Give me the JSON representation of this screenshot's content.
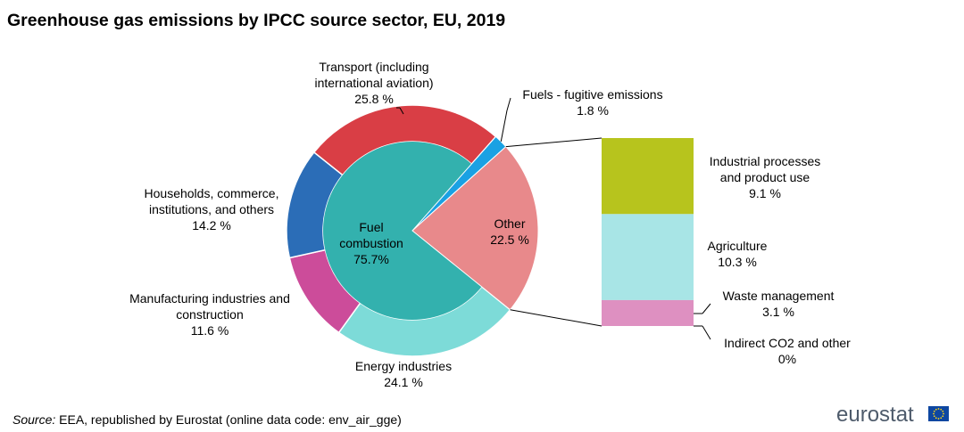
{
  "chart_data": {
    "type": "pie",
    "title": "Greenhouse gas emissions by IPCC source sector, EU, 2019",
    "unit": "%",
    "inner": [
      {
        "name": "Fuel combustion",
        "label_lines": [
          "Fuel",
          "combustion",
          "75.7%"
        ],
        "value": 75.7,
        "color": "#33b1ae"
      },
      {
        "name": "Fuels - fugitive emissions",
        "value": 1.8,
        "color": "#1aa1e3"
      },
      {
        "name": "Other",
        "label_lines": [
          "Other",
          "22.5 %"
        ],
        "value": 22.5,
        "color": "#e8898b"
      }
    ],
    "outer": [
      {
        "name": "Transport (including international aviation)",
        "label_lines": [
          "Transport  (including",
          "international  aviation)",
          "25.8 %"
        ],
        "value": 25.8,
        "color": "#d93e45"
      },
      {
        "name": "Households, commerce, institutions, and others",
        "label_lines": [
          "Households,  commerce,",
          "institutions,  and others",
          "14.2 %"
        ],
        "value": 14.2,
        "color": "#2b6db7"
      },
      {
        "name": "Manufacturing industries and construction",
        "label_lines": [
          "Manufacturing  industries and",
          "construction",
          "11.6 %"
        ],
        "value": 11.6,
        "color": "#cc4c9a"
      },
      {
        "name": "Energy industries",
        "label_lines": [
          "Energy industries",
          "24.1 %"
        ],
        "value": 24.1,
        "color": "#7ddbd8"
      }
    ],
    "fugitive_label_lines": [
      "Fuels - fugitive emissions",
      "1.8 %"
    ],
    "other_breakdown": [
      {
        "name": "Industrial processes and product use",
        "label_lines": [
          "Industrial processes",
          "and product use",
          "9.1 %"
        ],
        "value": 9.1,
        "color": "#b7c41d"
      },
      {
        "name": "Agriculture",
        "label_lines": [
          "Agriculture",
          "10.3 %"
        ],
        "value": 10.3,
        "color": "#a8e5e6"
      },
      {
        "name": "Waste management",
        "label_lines": [
          "Waste management",
          "3.1 %"
        ],
        "value": 3.1,
        "color": "#de90c1"
      },
      {
        "name": "Indirect CO2 and other",
        "label_lines": [
          "Indirect  CO2 and other",
          "0%"
        ],
        "value": 0,
        "color": "#cccccc"
      }
    ]
  },
  "source": {
    "prefix": "Source:",
    "text": " EEA, republished by Eurostat (online data code: env_air_gge)"
  },
  "logo": {
    "text": "eurostat",
    "flag_color": "#0e47a1",
    "star_color": "#ffd617"
  }
}
